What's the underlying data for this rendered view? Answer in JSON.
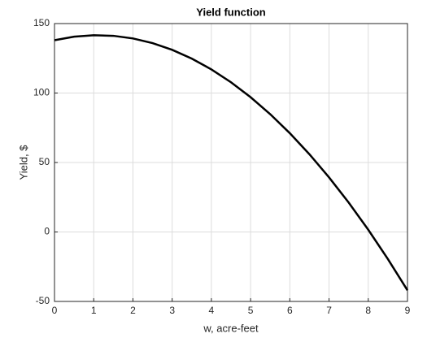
{
  "chart_data": {
    "type": "line",
    "title": "Yield function",
    "x_label": "w, acre-feet",
    "y_label": "Yield, $",
    "x": [
      0,
      0.5,
      1,
      1.5,
      2,
      2.5,
      3,
      3.5,
      4,
      4.5,
      5,
      5.5,
      6,
      6.5,
      7,
      7.5,
      8,
      8.5,
      9
    ],
    "series": [
      {
        "color": "#000000",
        "values": [
          138,
          140.54,
          141.6,
          141.19,
          139.3,
          135.94,
          131.1,
          124.79,
          117,
          107.74,
          97,
          84.79,
          71.1,
          55.94,
          39.3,
          21.19,
          1.6,
          -19.46,
          -42
        ]
      }
    ],
    "xlim": [
      0,
      9
    ],
    "xticks": [
      0,
      1,
      2,
      3,
      4,
      5,
      6,
      7,
      8,
      9
    ],
    "ylim": [
      -50,
      150
    ],
    "yticks": [
      -50,
      0,
      50,
      100,
      150
    ],
    "grid": true
  }
}
